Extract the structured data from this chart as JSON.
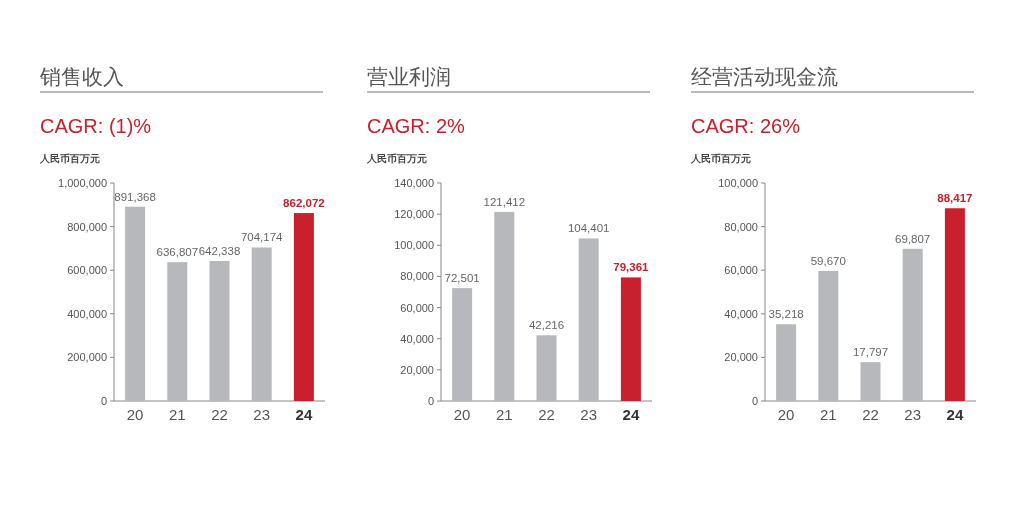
{
  "chart_data": [
    {
      "type": "bar",
      "title": "销售收入",
      "subtitle": "CAGR: (1)%",
      "ylabel": "人民币百万元",
      "categories": [
        "20",
        "21",
        "22",
        "23",
        "24"
      ],
      "values": [
        891368,
        636807,
        642338,
        704174,
        862072
      ],
      "value_labels": [
        "891,368",
        "636,807",
        "642,338",
        "704,174",
        "862,072"
      ],
      "colors": [
        "#b7b8bc",
        "#b7b8bc",
        "#b7b8bc",
        "#b7b8bc",
        "#c8202c"
      ],
      "ylim": [
        0,
        1000000
      ],
      "yticks": [
        {
          "value": 0,
          "label": "0"
        },
        {
          "value": 200000,
          "label": "200,000"
        },
        {
          "value": 400000,
          "label": "400,000"
        },
        {
          "value": 600000,
          "label": "600,000"
        },
        {
          "value": 800000,
          "label": "800,000"
        },
        {
          "value": 1000000,
          "label": "1,000,000"
        }
      ],
      "grid": false
    },
    {
      "type": "bar",
      "title": "营业利润",
      "subtitle": "CAGR: 2%",
      "ylabel": "人民币百万元",
      "categories": [
        "20",
        "21",
        "22",
        "23",
        "24"
      ],
      "values": [
        72501,
        121412,
        42216,
        104401,
        79361
      ],
      "value_labels": [
        "72,501",
        "121,412",
        "42,216",
        "104,401",
        "79,361"
      ],
      "colors": [
        "#b7b8bc",
        "#b7b8bc",
        "#b7b8bc",
        "#b7b8bc",
        "#c8202c"
      ],
      "ylim": [
        0,
        140000
      ],
      "yticks": [
        {
          "value": 0,
          "label": "0"
        },
        {
          "value": 20000,
          "label": "20,000"
        },
        {
          "value": 40000,
          "label": "40,000"
        },
        {
          "value": 60000,
          "label": "60,000"
        },
        {
          "value": 80000,
          "label": "80,000"
        },
        {
          "value": 100000,
          "label": "100,000"
        },
        {
          "value": 120000,
          "label": "120,000"
        },
        {
          "value": 140000,
          "label": "140,000"
        }
      ],
      "grid": false
    },
    {
      "type": "bar",
      "title": "经营活动现金流",
      "subtitle": "CAGR: 26%",
      "ylabel": "人民币百万元",
      "categories": [
        "20",
        "21",
        "22",
        "23",
        "24"
      ],
      "values": [
        35218,
        59670,
        17797,
        69807,
        88417
      ],
      "value_labels": [
        "35,218",
        "59,670",
        "17,797",
        "69,807",
        "88,417"
      ],
      "colors": [
        "#b7b8bc",
        "#b7b8bc",
        "#b7b8bc",
        "#b7b8bc",
        "#c8202c"
      ],
      "ylim": [
        0,
        100000
      ],
      "yticks": [
        {
          "value": 0,
          "label": "0"
        },
        {
          "value": 20000,
          "label": "20,000"
        },
        {
          "value": 40000,
          "label": "40,000"
        },
        {
          "value": 60000,
          "label": "60,000"
        },
        {
          "value": 80000,
          "label": "80,000"
        },
        {
          "value": 100000,
          "label": "100,000"
        }
      ],
      "grid": false
    }
  ]
}
